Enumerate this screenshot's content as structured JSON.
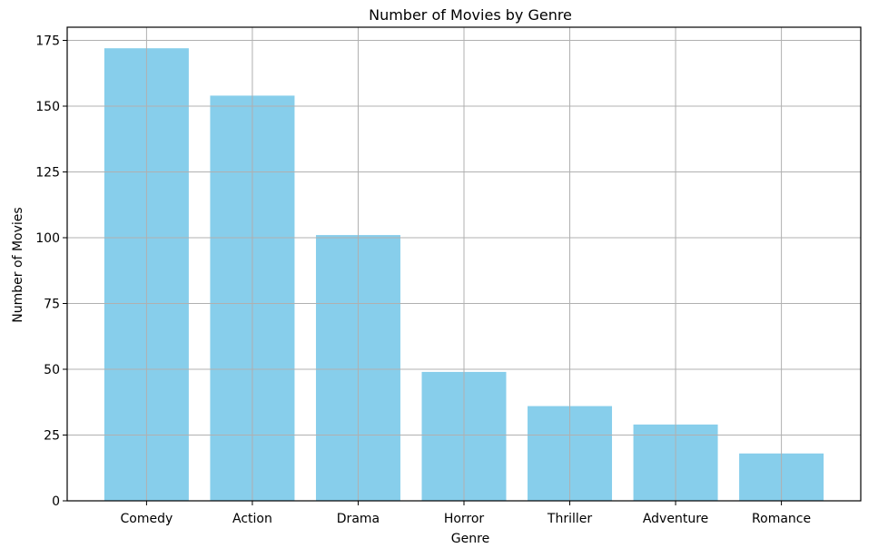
{
  "chart_data": {
    "type": "bar",
    "title": "Number of Movies by Genre",
    "xlabel": "Genre",
    "ylabel": "Number of Movies",
    "categories": [
      "Comedy",
      "Action",
      "Drama",
      "Horror",
      "Thriller",
      "Adventure",
      "Romance"
    ],
    "values": [
      172,
      154,
      101,
      49,
      36,
      29,
      18
    ],
    "ylim": [
      0,
      180
    ],
    "yticks": [
      0,
      25,
      50,
      75,
      100,
      125,
      150,
      175
    ],
    "grid": true,
    "bar_color": "#87CEEB"
  }
}
